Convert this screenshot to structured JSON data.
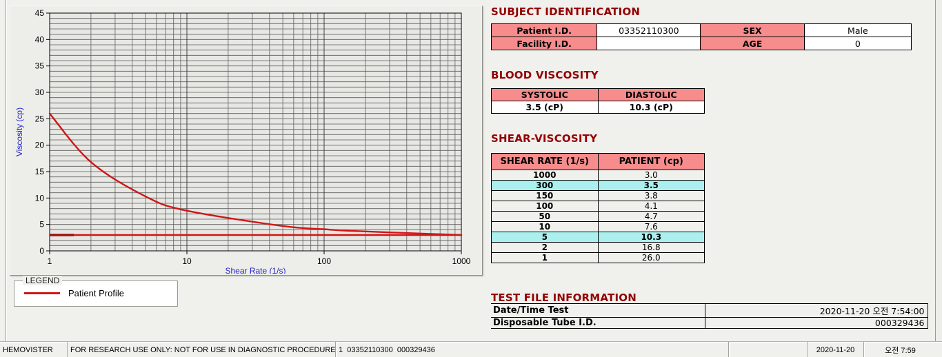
{
  "subject": {
    "title": "SUBJECT IDENTIFICATION",
    "fields": [
      {
        "label": "Patient I.D.",
        "value": "03352110300"
      },
      {
        "label": "SEX",
        "value": "Male"
      },
      {
        "label": "Facility I.D.",
        "value": ""
      },
      {
        "label": "AGE",
        "value": "0"
      }
    ]
  },
  "blood": {
    "title": "BLOOD VISCOSITY",
    "columns": [
      "SYSTOLIC",
      "DIASTOLIC"
    ],
    "values": [
      "3.5 (cP)",
      "10.3 (cP)"
    ]
  },
  "shear": {
    "title": "SHEAR-VISCOSITY",
    "columns": [
      "SHEAR RATE (1/s)",
      "PATIENT (cp)"
    ],
    "rows": [
      {
        "shear_rate": "1000",
        "patient": "3.0",
        "highlight": false
      },
      {
        "shear_rate": "300",
        "patient": "3.5",
        "highlight": true
      },
      {
        "shear_rate": "150",
        "patient": "3.8",
        "highlight": false
      },
      {
        "shear_rate": "100",
        "patient": "4.1",
        "highlight": false
      },
      {
        "shear_rate": "50",
        "patient": "4.7",
        "highlight": false
      },
      {
        "shear_rate": "10",
        "patient": "7.6",
        "highlight": false
      },
      {
        "shear_rate": "5",
        "patient": "10.3",
        "highlight": true
      },
      {
        "shear_rate": "2",
        "patient": "16.8",
        "highlight": false
      },
      {
        "shear_rate": "1",
        "patient": "26.0",
        "highlight": false
      }
    ]
  },
  "test_file": {
    "title": "TEST FILE INFORMATION",
    "rows": [
      {
        "label": "Date/Time Test",
        "value": "2020-11-20   오전 7:54:00"
      },
      {
        "label": "Disposable Tube I.D.",
        "value": "000329436"
      }
    ]
  },
  "legend": {
    "box_label": "LEGEND",
    "series_label": "Patient Profile"
  },
  "status_bar": {
    "panels": [
      "HEMOVISTER",
      "FOR RESEARCH USE ONLY: NOT FOR USE IN DIAGNOSTIC PROCEDURES",
      "1  03352110300  000329436",
      "",
      "2020-11-20",
      "오전 7:59"
    ]
  },
  "colors": {
    "accent_pink": "#f78c8c",
    "highlight_cyan": "#abefef",
    "title_maroon": "#930000",
    "curve_red": "#d01616",
    "axis_blue": "#2424c8"
  },
  "chart_data": {
    "type": "line",
    "title": "",
    "xlabel": "Shear Rate (1/s)",
    "ylabel": "Viscosity (cp)",
    "x_scale": "log",
    "xlim": [
      1,
      1000
    ],
    "ylim": [
      0,
      45
    ],
    "x_ticks": [
      1,
      10,
      100,
      1000
    ],
    "y_ticks": [
      0,
      5,
      10,
      15,
      20,
      25,
      30,
      35,
      40,
      45
    ],
    "grid": "minor",
    "legend_position": "below-left",
    "series": [
      {
        "name": "Patient Profile",
        "color": "#d01616",
        "x": [
          1,
          2,
          5,
          10,
          50,
          100,
          150,
          300,
          1000
        ],
        "y": [
          26.0,
          16.8,
          10.3,
          7.6,
          4.7,
          4.1,
          3.8,
          3.5,
          3.0
        ]
      },
      {
        "name": "",
        "color": "#d01616",
        "x": [
          1,
          1000
        ],
        "y": [
          3.0,
          3.0
        ]
      }
    ]
  }
}
